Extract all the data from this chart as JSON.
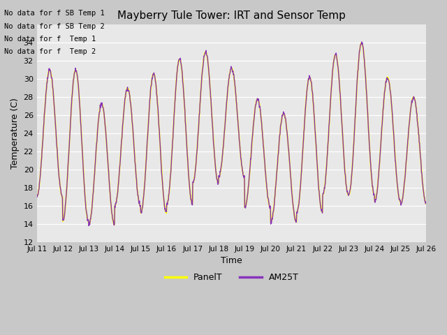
{
  "title": "Mayberry Tule Tower: IRT and Sensor Temp",
  "xlabel": "Time",
  "ylabel": "Temperature (C)",
  "ylim": [
    12,
    36
  ],
  "yticks": [
    12,
    14,
    16,
    18,
    20,
    22,
    24,
    26,
    28,
    30,
    32,
    34
  ],
  "plot_bg_color": "#e8e8e8",
  "fig_bg_color": "#c8c8c8",
  "panel_color": "#ffff00",
  "am25t_color": "#8833bb",
  "no_data_texts": [
    "No data for f SB Temp 1",
    "No data for f SB Temp 2",
    "No data for f  Temp 1",
    "No data for f  Temp 2"
  ],
  "legend_entries": [
    "PanelT",
    "AM25T"
  ],
  "day_peaks": [
    31,
    31,
    27.3,
    29,
    30.6,
    32.2,
    33,
    31.2,
    27.8,
    26.2,
    30.2,
    32.7,
    34,
    30.2,
    28
  ],
  "day_mins": [
    17,
    14.3,
    13.9,
    16,
    15.2,
    16.2,
    18.5,
    19.2,
    15.8,
    14.2,
    15.3,
    17.2,
    17.2,
    16.5,
    16.2
  ],
  "num_points": 1200,
  "days": 15
}
